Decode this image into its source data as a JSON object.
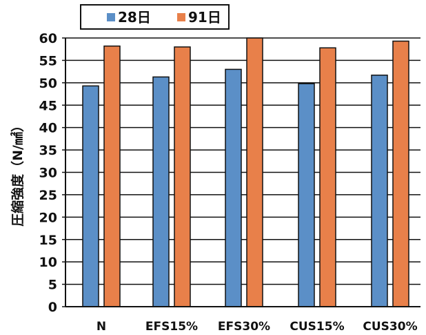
{
  "chart_data": {
    "type": "bar",
    "categories": [
      "N",
      "EFS15%",
      "EFS30%",
      "CUS15%",
      "CUS30%"
    ],
    "series": [
      {
        "name": "28日",
        "color": "#5b8fc7",
        "values": [
          49.3,
          51.3,
          53.0,
          49.8,
          51.7
        ]
      },
      {
        "name": "91日",
        "color": "#e8804a",
        "values": [
          58.2,
          58.0,
          60.0,
          57.8,
          59.3
        ]
      }
    ],
    "ylabel": "圧縮強度（N/㎟）",
    "ylim": [
      0,
      60
    ],
    "yticks": [
      "0",
      "5",
      "10",
      "15",
      "20",
      "25",
      "30",
      "35",
      "40",
      "45",
      "50",
      "55",
      "60"
    ],
    "grid": true,
    "legend": "top"
  }
}
